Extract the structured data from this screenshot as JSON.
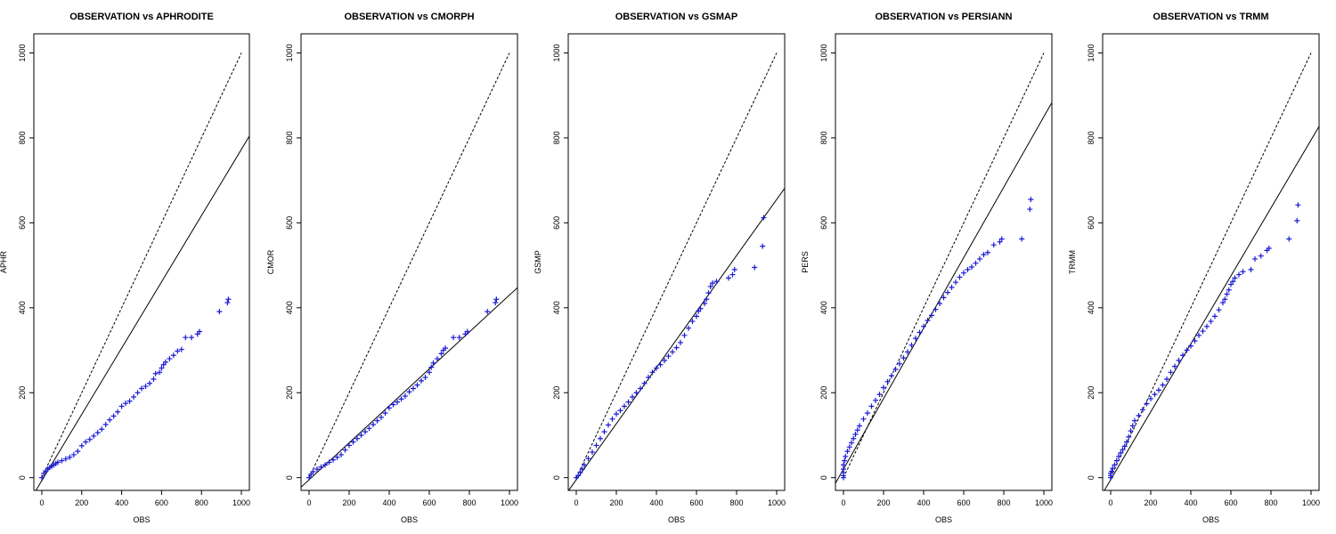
{
  "figure": {
    "panels": [
      {
        "title": "OBSERVATION vs APHRODITE",
        "xlabel": "OBS",
        "ylabel": "APHR"
      },
      {
        "title": "OBSERVATION vs CMORPH",
        "xlabel": "OBS",
        "ylabel": "CMOR"
      },
      {
        "title": "OBSERVATION vs GSMAP",
        "xlabel": "OBS",
        "ylabel": "GSMP"
      },
      {
        "title": "OBSERVATION vs PERSIANN",
        "xlabel": "OBS",
        "ylabel": "PERS"
      },
      {
        "title": "OBSERVATION vs TRMM",
        "xlabel": "OBS",
        "ylabel": "TRMM"
      }
    ]
  },
  "colors": {
    "points": "#1a1ad6",
    "lines": "#000000",
    "axes": "#000000"
  },
  "chart_data": [
    {
      "type": "scatter",
      "title": "OBSERVATION vs APHRODITE",
      "xlabel": "OBS",
      "ylabel": "APHR",
      "xlim": [
        -40,
        1040
      ],
      "ylim": [
        -30,
        1045
      ],
      "xticks": [
        0,
        200,
        400,
        600,
        800,
        1000
      ],
      "yticks": [
        0,
        200,
        400,
        600,
        800,
        1000
      ],
      "grid": false,
      "marker": "+",
      "reference_line": {
        "style": "dashed",
        "slope": 1,
        "intercept": 0,
        "x_range": [
          0,
          1000
        ]
      },
      "fit_line": {
        "style": "solid",
        "slope": 0.78,
        "intercept": -7
      },
      "points": [
        [
          0,
          0
        ],
        [
          10,
          10
        ],
        [
          20,
          16
        ],
        [
          30,
          20
        ],
        [
          40,
          24
        ],
        [
          50,
          27
        ],
        [
          60,
          30
        ],
        [
          70,
          33
        ],
        [
          80,
          36
        ],
        [
          100,
          40
        ],
        [
          120,
          44
        ],
        [
          140,
          48
        ],
        [
          160,
          54
        ],
        [
          180,
          62
        ],
        [
          200,
          75
        ],
        [
          220,
          84
        ],
        [
          240,
          90
        ],
        [
          260,
          98
        ],
        [
          280,
          106
        ],
        [
          300,
          114
        ],
        [
          320,
          125
        ],
        [
          340,
          136
        ],
        [
          360,
          145
        ],
        [
          380,
          155
        ],
        [
          400,
          168
        ],
        [
          420,
          175
        ],
        [
          440,
          180
        ],
        [
          460,
          190
        ],
        [
          480,
          200
        ],
        [
          500,
          210
        ],
        [
          520,
          215
        ],
        [
          540,
          222
        ],
        [
          560,
          232
        ],
        [
          570,
          245
        ],
        [
          590,
          248
        ],
        [
          600,
          258
        ],
        [
          610,
          266
        ],
        [
          620,
          272
        ],
        [
          640,
          280
        ],
        [
          660,
          288
        ],
        [
          680,
          298
        ],
        [
          700,
          302
        ],
        [
          720,
          330
        ],
        [
          750,
          330
        ],
        [
          780,
          338
        ],
        [
          790,
          344
        ],
        [
          890,
          391
        ],
        [
          930,
          412
        ],
        [
          935,
          420
        ]
      ]
    },
    {
      "type": "scatter",
      "title": "OBSERVATION vs CMORPH",
      "xlabel": "OBS",
      "ylabel": "CMOR",
      "xlim": [
        -40,
        1040
      ],
      "ylim": [
        -30,
        1045
      ],
      "xticks": [
        0,
        200,
        400,
        600,
        800,
        1000
      ],
      "yticks": [
        0,
        200,
        400,
        600,
        800,
        1000
      ],
      "grid": false,
      "marker": "+",
      "reference_line": {
        "style": "dashed",
        "slope": 1,
        "intercept": 0,
        "x_range": [
          0,
          1000
        ]
      },
      "fit_line": {
        "style": "solid",
        "slope": 0.435,
        "intercept": -5
      },
      "points": [
        [
          0,
          0
        ],
        [
          10,
          8
        ],
        [
          20,
          14
        ],
        [
          40,
          20
        ],
        [
          60,
          25
        ],
        [
          80,
          30
        ],
        [
          100,
          36
        ],
        [
          120,
          42
        ],
        [
          140,
          48
        ],
        [
          160,
          54
        ],
        [
          180,
          65
        ],
        [
          200,
          76
        ],
        [
          220,
          84
        ],
        [
          240,
          92
        ],
        [
          260,
          100
        ],
        [
          280,
          108
        ],
        [
          300,
          116
        ],
        [
          320,
          125
        ],
        [
          340,
          134
        ],
        [
          360,
          142
        ],
        [
          380,
          152
        ],
        [
          400,
          164
        ],
        [
          420,
          172
        ],
        [
          440,
          178
        ],
        [
          460,
          185
        ],
        [
          480,
          192
        ],
        [
          500,
          202
        ],
        [
          520,
          210
        ],
        [
          540,
          218
        ],
        [
          560,
          228
        ],
        [
          580,
          236
        ],
        [
          600,
          248
        ],
        [
          610,
          260
        ],
        [
          620,
          270
        ],
        [
          640,
          280
        ],
        [
          660,
          292
        ],
        [
          670,
          300
        ],
        [
          680,
          305
        ],
        [
          720,
          330
        ],
        [
          750,
          330
        ],
        [
          780,
          338
        ],
        [
          790,
          344
        ],
        [
          890,
          391
        ],
        [
          930,
          412
        ],
        [
          935,
          420
        ]
      ]
    },
    {
      "type": "scatter",
      "title": "OBSERVATION vs GSMAP",
      "xlabel": "OBS",
      "ylabel": "GSMP",
      "xlim": [
        -40,
        1040
      ],
      "ylim": [
        -30,
        1045
      ],
      "xticks": [
        0,
        200,
        400,
        600,
        800,
        1000
      ],
      "yticks": [
        0,
        200,
        400,
        600,
        800,
        1000
      ],
      "grid": false,
      "marker": "+",
      "reference_line": {
        "style": "dashed",
        "slope": 1,
        "intercept": 0,
        "x_range": [
          0,
          1000
        ]
      },
      "fit_line": {
        "style": "solid",
        "slope": 0.66,
        "intercept": -5
      },
      "points": [
        [
          0,
          0
        ],
        [
          10,
          5
        ],
        [
          20,
          12
        ],
        [
          30,
          20
        ],
        [
          40,
          30
        ],
        [
          60,
          45
        ],
        [
          80,
          60
        ],
        [
          100,
          76
        ],
        [
          120,
          92
        ],
        [
          140,
          108
        ],
        [
          160,
          124
        ],
        [
          180,
          138
        ],
        [
          200,
          150
        ],
        [
          220,
          158
        ],
        [
          240,
          168
        ],
        [
          260,
          178
        ],
        [
          280,
          190
        ],
        [
          300,
          200
        ],
        [
          320,
          210
        ],
        [
          340,
          222
        ],
        [
          360,
          236
        ],
        [
          380,
          248
        ],
        [
          400,
          258
        ],
        [
          420,
          266
        ],
        [
          440,
          276
        ],
        [
          460,
          286
        ],
        [
          480,
          296
        ],
        [
          500,
          306
        ],
        [
          520,
          318
        ],
        [
          540,
          335
        ],
        [
          560,
          352
        ],
        [
          580,
          368
        ],
        [
          600,
          380
        ],
        [
          610,
          392
        ],
        [
          620,
          398
        ],
        [
          640,
          410
        ],
        [
          650,
          420
        ],
        [
          660,
          435
        ],
        [
          670,
          450
        ],
        [
          680,
          458
        ],
        [
          700,
          462
        ],
        [
          760,
          470
        ],
        [
          780,
          478
        ],
        [
          790,
          490
        ],
        [
          890,
          495
        ],
        [
          930,
          545
        ],
        [
          935,
          612
        ]
      ]
    },
    {
      "type": "scatter",
      "title": "OBSERVATION vs PERSIANN",
      "xlabel": "OBS",
      "ylabel": "PERS",
      "xlim": [
        -40,
        1040
      ],
      "ylim": [
        -30,
        1045
      ],
      "xticks": [
        0,
        200,
        400,
        600,
        800,
        1000
      ],
      "yticks": [
        0,
        200,
        400,
        600,
        800,
        1000
      ],
      "grid": false,
      "marker": "+",
      "reference_line": {
        "style": "dashed",
        "slope": 1,
        "intercept": 0,
        "x_range": [
          0,
          1000
        ]
      },
      "fit_line": {
        "style": "solid",
        "slope": 0.83,
        "intercept": 20
      },
      "points": [
        [
          0,
          0
        ],
        [
          0,
          5
        ],
        [
          0,
          12
        ],
        [
          0,
          20
        ],
        [
          0,
          30
        ],
        [
          5,
          40
        ],
        [
          10,
          50
        ],
        [
          20,
          62
        ],
        [
          30,
          72
        ],
        [
          40,
          82
        ],
        [
          50,
          92
        ],
        [
          60,
          102
        ],
        [
          70,
          112
        ],
        [
          80,
          122
        ],
        [
          100,
          138
        ],
        [
          120,
          152
        ],
        [
          140,
          168
        ],
        [
          160,
          182
        ],
        [
          180,
          196
        ],
        [
          200,
          212
        ],
        [
          220,
          226
        ],
        [
          240,
          240
        ],
        [
          260,
          255
        ],
        [
          280,
          268
        ],
        [
          300,
          282
        ],
        [
          320,
          296
        ],
        [
          340,
          312
        ],
        [
          360,
          328
        ],
        [
          380,
          342
        ],
        [
          400,
          356
        ],
        [
          420,
          370
        ],
        [
          440,
          382
        ],
        [
          460,
          396
        ],
        [
          480,
          410
        ],
        [
          500,
          424
        ],
        [
          520,
          436
        ],
        [
          540,
          448
        ],
        [
          560,
          460
        ],
        [
          580,
          472
        ],
        [
          600,
          482
        ],
        [
          620,
          490
        ],
        [
          640,
          496
        ],
        [
          660,
          505
        ],
        [
          680,
          515
        ],
        [
          700,
          525
        ],
        [
          720,
          530
        ],
        [
          750,
          548
        ],
        [
          780,
          555
        ],
        [
          790,
          562
        ],
        [
          890,
          562
        ],
        [
          930,
          632
        ],
        [
          935,
          655
        ]
      ]
    },
    {
      "type": "scatter",
      "title": "OBSERVATION vs TRMM",
      "xlabel": "OBS",
      "ylabel": "TRMM",
      "xlim": [
        -40,
        1040
      ],
      "ylim": [
        -30,
        1045
      ],
      "xticks": [
        0,
        200,
        400,
        600,
        800,
        1000
      ],
      "yticks": [
        0,
        200,
        400,
        600,
        800,
        1000
      ],
      "grid": false,
      "marker": "+",
      "reference_line": {
        "style": "dashed",
        "slope": 1,
        "intercept": 0,
        "x_range": [
          0,
          1000
        ]
      },
      "fit_line": {
        "style": "solid",
        "slope": 0.8,
        "intercept": -5
      },
      "points": [
        [
          0,
          0
        ],
        [
          0,
          5
        ],
        [
          0,
          10
        ],
        [
          5,
          15
        ],
        [
          10,
          22
        ],
        [
          20,
          30
        ],
        [
          30,
          40
        ],
        [
          40,
          50
        ],
        [
          50,
          58
        ],
        [
          60,
          66
        ],
        [
          70,
          74
        ],
        [
          80,
          84
        ],
        [
          90,
          96
        ],
        [
          100,
          110
        ],
        [
          110,
          122
        ],
        [
          120,
          134
        ],
        [
          140,
          146
        ],
        [
          160,
          160
        ],
        [
          180,
          174
        ],
        [
          200,
          186
        ],
        [
          220,
          196
        ],
        [
          240,
          206
        ],
        [
          260,
          218
        ],
        [
          280,
          232
        ],
        [
          300,
          248
        ],
        [
          320,
          262
        ],
        [
          340,
          276
        ],
        [
          360,
          288
        ],
        [
          380,
          300
        ],
        [
          400,
          310
        ],
        [
          420,
          322
        ],
        [
          440,
          335
        ],
        [
          460,
          345
        ],
        [
          480,
          356
        ],
        [
          500,
          368
        ],
        [
          520,
          380
        ],
        [
          540,
          395
        ],
        [
          560,
          412
        ],
        [
          570,
          420
        ],
        [
          580,
          432
        ],
        [
          590,
          442
        ],
        [
          600,
          455
        ],
        [
          610,
          462
        ],
        [
          620,
          470
        ],
        [
          640,
          478
        ],
        [
          660,
          485
        ],
        [
          700,
          490
        ],
        [
          720,
          515
        ],
        [
          750,
          522
        ],
        [
          780,
          535
        ],
        [
          790,
          540
        ],
        [
          890,
          562
        ],
        [
          930,
          605
        ],
        [
          935,
          642
        ]
      ]
    }
  ]
}
